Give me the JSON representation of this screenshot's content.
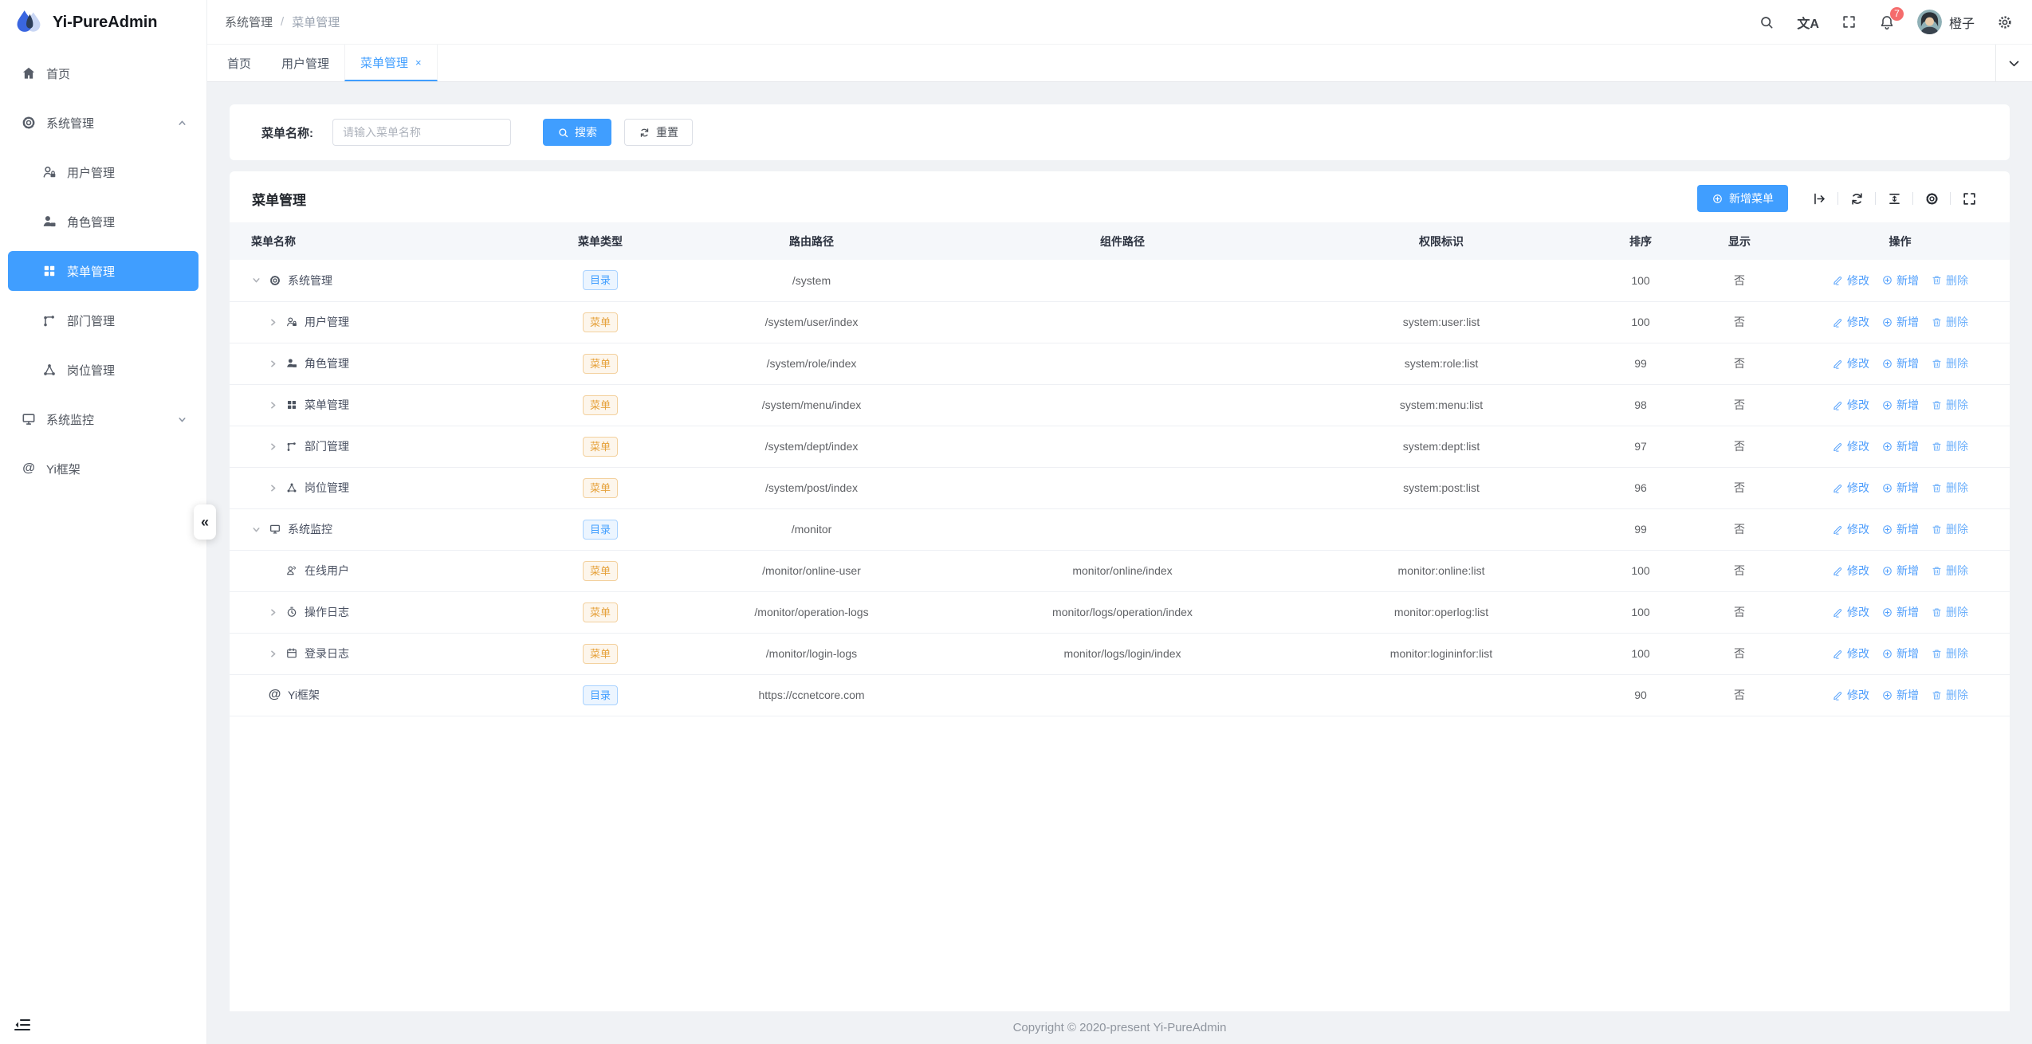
{
  "app": {
    "title": "Yi-PureAdmin",
    "footer_text": "Copyright © 2020-present Yi-PureAdmin"
  },
  "colors": {
    "primary": "#409eff",
    "badge": "#f56c6c",
    "tag_dir_text": "#409eff",
    "tag_menu_text": "#e6a23c",
    "sidebar_active_bg": "#409eff"
  },
  "sidebar": {
    "collapse_handle": "«",
    "items": [
      {
        "label": "首页",
        "icon": "home-icon",
        "level": 0
      },
      {
        "label": "系统管理",
        "icon": "gear-icon",
        "level": 0,
        "caret": "up"
      },
      {
        "label": "用户管理",
        "icon": "user-icon",
        "level": 1
      },
      {
        "label": "角色管理",
        "icon": "role-icon",
        "level": 1
      },
      {
        "label": "菜单管理",
        "icon": "grid-icon",
        "level": 1,
        "active": true
      },
      {
        "label": "部门管理",
        "icon": "dept-icon",
        "level": 1
      },
      {
        "label": "岗位管理",
        "icon": "post-icon",
        "level": 1
      },
      {
        "label": "系统监控",
        "icon": "monitor-icon",
        "level": 0,
        "caret": "down"
      },
      {
        "label": "Yi框架",
        "icon": "at-icon",
        "level": 0
      }
    ]
  },
  "header": {
    "breadcrumb": {
      "first": "系统管理",
      "separator": "/",
      "last": "菜单管理"
    },
    "notification_count": "7",
    "user_name": "橙子"
  },
  "tabs": {
    "items": [
      {
        "label": "首页"
      },
      {
        "label": "用户管理"
      },
      {
        "label": "菜单管理",
        "active": true,
        "closable": true,
        "close_glyph": "×"
      }
    ]
  },
  "search": {
    "label": "菜单名称:",
    "placeholder": "请输入菜单名称",
    "value": "",
    "search_label": "搜索",
    "reset_label": "重置"
  },
  "table": {
    "title": "菜单管理",
    "add_label": "新增菜单",
    "columns": [
      "菜单名称",
      "菜单类型",
      "路由路径",
      "组件路径",
      "权限标识",
      "排序",
      "显示",
      "操作"
    ],
    "action_labels": {
      "edit": "修改",
      "add": "新增",
      "delete": "删除"
    },
    "rows": [
      {
        "name": "系统管理",
        "icon": "gear-icon",
        "level": 0,
        "caret": "down",
        "tag": "目录",
        "tag_type": "dir",
        "route": "/system",
        "component": "",
        "perm": "",
        "sort": "100",
        "visible": "否"
      },
      {
        "name": "用户管理",
        "icon": "user-icon",
        "level": 1,
        "caret": "right",
        "tag": "菜单",
        "tag_type": "menu",
        "route": "/system/user/index",
        "component": "",
        "perm": "system:user:list",
        "sort": "100",
        "visible": "否"
      },
      {
        "name": "角色管理",
        "icon": "role-icon",
        "level": 1,
        "caret": "right",
        "tag": "菜单",
        "tag_type": "menu",
        "route": "/system/role/index",
        "component": "",
        "perm": "system:role:list",
        "sort": "99",
        "visible": "否"
      },
      {
        "name": "菜单管理",
        "icon": "grid-icon",
        "level": 1,
        "caret": "right",
        "tag": "菜单",
        "tag_type": "menu",
        "route": "/system/menu/index",
        "component": "",
        "perm": "system:menu:list",
        "sort": "98",
        "visible": "否"
      },
      {
        "name": "部门管理",
        "icon": "dept-icon",
        "level": 1,
        "caret": "right",
        "tag": "菜单",
        "tag_type": "menu",
        "route": "/system/dept/index",
        "component": "",
        "perm": "system:dept:list",
        "sort": "97",
        "visible": "否"
      },
      {
        "name": "岗位管理",
        "icon": "post-icon",
        "level": 1,
        "caret": "right",
        "tag": "菜单",
        "tag_type": "menu",
        "route": "/system/post/index",
        "component": "",
        "perm": "system:post:list",
        "sort": "96",
        "visible": "否"
      },
      {
        "name": "系统监控",
        "icon": "monitor-icon",
        "level": 0,
        "caret": "down",
        "tag": "目录",
        "tag_type": "dir",
        "route": "/monitor",
        "component": "",
        "perm": "",
        "sort": "99",
        "visible": "否"
      },
      {
        "name": "在线用户",
        "icon": "online-icon",
        "level": 1,
        "caret": "none",
        "tag": "菜单",
        "tag_type": "menu",
        "route": "/monitor/online-user",
        "component": "monitor/online/index",
        "perm": "monitor:online:list",
        "sort": "100",
        "visible": "否"
      },
      {
        "name": "操作日志",
        "icon": "oplog-icon",
        "level": 1,
        "caret": "right",
        "tag": "菜单",
        "tag_type": "menu",
        "route": "/monitor/operation-logs",
        "component": "monitor/logs/operation/index",
        "perm": "monitor:operlog:list",
        "sort": "100",
        "visible": "否"
      },
      {
        "name": "登录日志",
        "icon": "loginlog-icon",
        "level": 1,
        "caret": "right",
        "tag": "菜单",
        "tag_type": "menu",
        "route": "/monitor/login-logs",
        "component": "monitor/logs/login/index",
        "perm": "monitor:logininfor:list",
        "sort": "100",
        "visible": "否"
      },
      {
        "name": "Yi框架",
        "icon": "at-icon",
        "level": 0,
        "caret": "none",
        "tag": "目录",
        "tag_type": "dir",
        "route": "https://ccnetcore.com",
        "component": "",
        "perm": "",
        "sort": "90",
        "visible": "否"
      }
    ],
    "toolbar_icons": [
      "expand-row-icon",
      "refresh-icon",
      "density-icon",
      "column-settings-icon",
      "table-fullscreen-icon"
    ]
  }
}
